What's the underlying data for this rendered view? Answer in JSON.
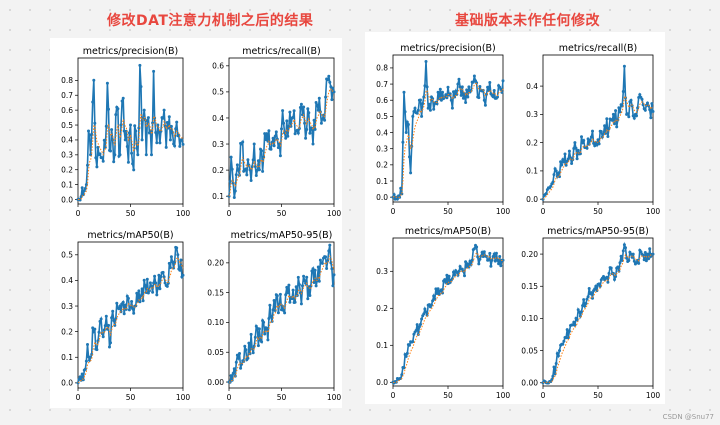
{
  "headings": {
    "left": "修改DAT注意力机制之后的结果",
    "right": "基础版本未作任何修改"
  },
  "watermark": "CSDN @Snu77",
  "colors": {
    "heading": "#e8473f",
    "line": "#1f77b4",
    "smooth": "#ff7f0e"
  },
  "chart_data": [
    {
      "type": "line",
      "group": "left",
      "title": "metrics/precision(B)",
      "xlim": [
        0,
        100
      ],
      "ylim": [
        -0.03,
        0.95
      ],
      "xticks": [
        0,
        50,
        100
      ],
      "yticks": [
        0.0,
        0.1,
        0.2,
        0.3,
        0.4,
        0.5,
        0.6,
        0.7,
        0.8
      ],
      "shape": [
        [
          0,
          0.0
        ],
        [
          3,
          0.02
        ],
        [
          6,
          0.06
        ],
        [
          8,
          0.1
        ],
        [
          10,
          0.46
        ],
        [
          12,
          0.3
        ],
        [
          15,
          0.8
        ],
        [
          17,
          0.28
        ],
        [
          20,
          0.3
        ],
        [
          23,
          0.28
        ],
        [
          26,
          0.35
        ],
        [
          28,
          0.78
        ],
        [
          30,
          0.33
        ],
        [
          33,
          0.4
        ],
        [
          35,
          0.3
        ],
        [
          37,
          0.62
        ],
        [
          40,
          0.3
        ],
        [
          43,
          0.68
        ],
        [
          45,
          0.4
        ],
        [
          48,
          0.25
        ],
        [
          50,
          0.5
        ],
        [
          52,
          0.24
        ],
        [
          55,
          0.46
        ],
        [
          57,
          0.3
        ],
        [
          59,
          0.9
        ],
        [
          61,
          0.4
        ],
        [
          63,
          0.6
        ],
        [
          65,
          0.3
        ],
        [
          67,
          0.55
        ],
        [
          70,
          0.3
        ],
        [
          72,
          0.86
        ],
        [
          74,
          0.45
        ],
        [
          76,
          0.5
        ],
        [
          78,
          0.38
        ],
        [
          80,
          0.55
        ],
        [
          82,
          0.6
        ],
        [
          84,
          0.35
        ],
        [
          86,
          0.48
        ],
        [
          88,
          0.4
        ],
        [
          90,
          0.45
        ],
        [
          92,
          0.36
        ],
        [
          94,
          0.52
        ],
        [
          96,
          0.43
        ],
        [
          98,
          0.4
        ],
        [
          100,
          0.37
        ]
      ],
      "noise": 0.12,
      "seed": 11
    },
    {
      "type": "line",
      "group": "left",
      "title": "metrics/recall(B)",
      "xlim": [
        0,
        100
      ],
      "ylim": [
        0.07,
        0.63
      ],
      "xticks": [
        0,
        50,
        100
      ],
      "yticks": [
        0.1,
        0.2,
        0.3,
        0.4,
        0.5,
        0.6
      ],
      "shape": [
        [
          0,
          0.1
        ],
        [
          2,
          0.25
        ],
        [
          4,
          0.15
        ],
        [
          6,
          0.12
        ],
        [
          8,
          0.22
        ],
        [
          10,
          0.18
        ],
        [
          12,
          0.3
        ],
        [
          15,
          0.2
        ],
        [
          18,
          0.24
        ],
        [
          21,
          0.16
        ],
        [
          24,
          0.3
        ],
        [
          27,
          0.2
        ],
        [
          30,
          0.28
        ],
        [
          33,
          0.25
        ],
        [
          36,
          0.34
        ],
        [
          40,
          0.28
        ],
        [
          44,
          0.33
        ],
        [
          48,
          0.3
        ],
        [
          52,
          0.38
        ],
        [
          56,
          0.33
        ],
        [
          60,
          0.4
        ],
        [
          64,
          0.35
        ],
        [
          68,
          0.44
        ],
        [
          72,
          0.38
        ],
        [
          76,
          0.42
        ],
        [
          80,
          0.3
        ],
        [
          84,
          0.45
        ],
        [
          88,
          0.38
        ],
        [
          92,
          0.48
        ],
        [
          95,
          0.56
        ],
        [
          97,
          0.52
        ],
        [
          100,
          0.5
        ]
      ],
      "noise": 0.07,
      "seed": 23
    },
    {
      "type": "line",
      "group": "left",
      "title": "metrics/mAP50(B)",
      "xlim": [
        0,
        100
      ],
      "ylim": [
        -0.02,
        0.55
      ],
      "xticks": [
        0,
        50,
        100
      ],
      "yticks": [
        0.0,
        0.1,
        0.2,
        0.3,
        0.4,
        0.5
      ],
      "shape": [
        [
          0,
          0.0
        ],
        [
          3,
          0.01
        ],
        [
          6,
          0.05
        ],
        [
          9,
          0.15
        ],
        [
          12,
          0.1
        ],
        [
          15,
          0.2
        ],
        [
          18,
          0.13
        ],
        [
          21,
          0.24
        ],
        [
          24,
          0.18
        ],
        [
          27,
          0.26
        ],
        [
          30,
          0.14
        ],
        [
          33,
          0.28
        ],
        [
          36,
          0.25
        ],
        [
          40,
          0.3
        ],
        [
          44,
          0.27
        ],
        [
          48,
          0.33
        ],
        [
          52,
          0.29
        ],
        [
          56,
          0.35
        ],
        [
          60,
          0.34
        ],
        [
          64,
          0.38
        ],
        [
          68,
          0.36
        ],
        [
          72,
          0.39
        ],
        [
          76,
          0.37
        ],
        [
          80,
          0.43
        ],
        [
          84,
          0.38
        ],
        [
          88,
          0.45
        ],
        [
          92,
          0.47
        ],
        [
          95,
          0.5
        ],
        [
          97,
          0.44
        ],
        [
          100,
          0.42
        ]
      ],
      "noise": 0.05,
      "seed": 37
    },
    {
      "type": "line",
      "group": "left",
      "title": "metrics/mAP50-95(B)",
      "xlim": [
        0,
        100
      ],
      "ylim": [
        -0.01,
        0.235
      ],
      "xticks": [
        0,
        50,
        100
      ],
      "yticks": [
        0.0,
        0.05,
        0.1,
        0.15,
        0.2
      ],
      "shape": [
        [
          0,
          0.0
        ],
        [
          3,
          0.003
        ],
        [
          6,
          0.01
        ],
        [
          9,
          0.04
        ],
        [
          12,
          0.03
        ],
        [
          15,
          0.06
        ],
        [
          18,
          0.04
        ],
        [
          21,
          0.08
        ],
        [
          24,
          0.06
        ],
        [
          27,
          0.09
        ],
        [
          30,
          0.07
        ],
        [
          33,
          0.1
        ],
        [
          36,
          0.09
        ],
        [
          40,
          0.11
        ],
        [
          44,
          0.12
        ],
        [
          48,
          0.13
        ],
        [
          52,
          0.12
        ],
        [
          56,
          0.15
        ],
        [
          60,
          0.14
        ],
        [
          64,
          0.16
        ],
        [
          68,
          0.15
        ],
        [
          72,
          0.17
        ],
        [
          76,
          0.16
        ],
        [
          80,
          0.19
        ],
        [
          84,
          0.17
        ],
        [
          88,
          0.2
        ],
        [
          92,
          0.21
        ],
        [
          95,
          0.22
        ],
        [
          98,
          0.19
        ],
        [
          100,
          0.18
        ]
      ],
      "noise": 0.025,
      "seed": 41
    },
    {
      "type": "line",
      "group": "right",
      "title": "metrics/precision(B)",
      "xlim": [
        0,
        100
      ],
      "ylim": [
        -0.03,
        0.88
      ],
      "xticks": [
        0,
        50,
        100
      ],
      "yticks": [
        0.0,
        0.1,
        0.2,
        0.3,
        0.4,
        0.5,
        0.6,
        0.7,
        0.8
      ],
      "shape": [
        [
          0,
          0.0
        ],
        [
          3,
          0.0
        ],
        [
          6,
          0.0
        ],
        [
          8,
          0.02
        ],
        [
          10,
          0.65
        ],
        [
          12,
          0.4
        ],
        [
          14,
          0.45
        ],
        [
          16,
          0.15
        ],
        [
          18,
          0.5
        ],
        [
          20,
          0.55
        ],
        [
          22,
          0.52
        ],
        [
          24,
          0.6
        ],
        [
          26,
          0.5
        ],
        [
          28,
          0.62
        ],
        [
          30,
          0.84
        ],
        [
          32,
          0.55
        ],
        [
          35,
          0.62
        ],
        [
          38,
          0.58
        ],
        [
          41,
          0.65
        ],
        [
          44,
          0.6
        ],
        [
          47,
          0.62
        ],
        [
          50,
          0.68
        ],
        [
          53,
          0.6
        ],
        [
          56,
          0.62
        ],
        [
          59,
          0.7
        ],
        [
          62,
          0.63
        ],
        [
          65,
          0.64
        ],
        [
          68,
          0.62
        ],
        [
          71,
          0.66
        ],
        [
          74,
          0.75
        ],
        [
          77,
          0.62
        ],
        [
          80,
          0.66
        ],
        [
          83,
          0.6
        ],
        [
          86,
          0.68
        ],
        [
          89,
          0.64
        ],
        [
          92,
          0.66
        ],
        [
          95,
          0.62
        ],
        [
          97,
          0.68
        ],
        [
          100,
          0.72
        ]
      ],
      "noise": 0.06,
      "seed": 53
    },
    {
      "type": "line",
      "group": "right",
      "title": "metrics/recall(B)",
      "xlim": [
        0,
        100
      ],
      "ylim": [
        -0.01,
        0.51
      ],
      "xticks": [
        0,
        50,
        100
      ],
      "yticks": [
        0.0,
        0.1,
        0.2,
        0.3,
        0.4
      ],
      "shape": [
        [
          0,
          0.0
        ],
        [
          3,
          0.02
        ],
        [
          6,
          0.04
        ],
        [
          9,
          0.06
        ],
        [
          12,
          0.1
        ],
        [
          15,
          0.08
        ],
        [
          18,
          0.14
        ],
        [
          21,
          0.12
        ],
        [
          24,
          0.17
        ],
        [
          27,
          0.14
        ],
        [
          30,
          0.18
        ],
        [
          33,
          0.16
        ],
        [
          36,
          0.2
        ],
        [
          40,
          0.18
        ],
        [
          44,
          0.22
        ],
        [
          48,
          0.2
        ],
        [
          52,
          0.24
        ],
        [
          56,
          0.26
        ],
        [
          60,
          0.25
        ],
        [
          64,
          0.3
        ],
        [
          68,
          0.28
        ],
        [
          72,
          0.33
        ],
        [
          74,
          0.47
        ],
        [
          76,
          0.3
        ],
        [
          80,
          0.35
        ],
        [
          84,
          0.3
        ],
        [
          88,
          0.37
        ],
        [
          92,
          0.32
        ],
        [
          96,
          0.33
        ],
        [
          100,
          0.31
        ]
      ],
      "noise": 0.035,
      "seed": 67
    },
    {
      "type": "line",
      "group": "right",
      "title": "metrics/mAP50(B)",
      "xlim": [
        0,
        100
      ],
      "ylim": [
        -0.01,
        0.39
      ],
      "xticks": [
        0,
        50,
        100
      ],
      "yticks": [
        0.0,
        0.1,
        0.2,
        0.3
      ],
      "shape": [
        [
          0,
          0.0
        ],
        [
          3,
          0.0
        ],
        [
          6,
          0.01
        ],
        [
          9,
          0.04
        ],
        [
          12,
          0.07
        ],
        [
          15,
          0.1
        ],
        [
          18,
          0.11
        ],
        [
          21,
          0.14
        ],
        [
          24,
          0.15
        ],
        [
          27,
          0.18
        ],
        [
          30,
          0.19
        ],
        [
          33,
          0.21
        ],
        [
          36,
          0.22
        ],
        [
          40,
          0.24
        ],
        [
          44,
          0.25
        ],
        [
          48,
          0.27
        ],
        [
          52,
          0.27
        ],
        [
          56,
          0.29
        ],
        [
          60,
          0.3
        ],
        [
          64,
          0.3
        ],
        [
          68,
          0.32
        ],
        [
          72,
          0.33
        ],
        [
          75,
          0.37
        ],
        [
          78,
          0.32
        ],
        [
          82,
          0.34
        ],
        [
          86,
          0.33
        ],
        [
          90,
          0.33
        ],
        [
          95,
          0.33
        ],
        [
          100,
          0.33
        ]
      ],
      "noise": 0.02,
      "seed": 71
    },
    {
      "type": "line",
      "group": "right",
      "title": "metrics/mAP50-95(B)",
      "xlim": [
        0,
        100
      ],
      "ylim": [
        -0.005,
        0.225
      ],
      "xticks": [
        0,
        50,
        100
      ],
      "yticks": [
        0.0,
        0.05,
        0.1,
        0.15,
        0.2
      ],
      "shape": [
        [
          0,
          0.0
        ],
        [
          3,
          0.0
        ],
        [
          6,
          0.002
        ],
        [
          9,
          0.01
        ],
        [
          12,
          0.03
        ],
        [
          15,
          0.05
        ],
        [
          18,
          0.06
        ],
        [
          21,
          0.07
        ],
        [
          24,
          0.08
        ],
        [
          27,
          0.09
        ],
        [
          30,
          0.1
        ],
        [
          33,
          0.11
        ],
        [
          36,
          0.12
        ],
        [
          40,
          0.13
        ],
        [
          44,
          0.14
        ],
        [
          48,
          0.15
        ],
        [
          52,
          0.15
        ],
        [
          56,
          0.16
        ],
        [
          60,
          0.17
        ],
        [
          64,
          0.17
        ],
        [
          68,
          0.18
        ],
        [
          72,
          0.19
        ],
        [
          75,
          0.21
        ],
        [
          78,
          0.19
        ],
        [
          82,
          0.2
        ],
        [
          86,
          0.19
        ],
        [
          90,
          0.2
        ],
        [
          95,
          0.2
        ],
        [
          100,
          0.2
        ]
      ],
      "noise": 0.012,
      "seed": 83
    }
  ]
}
